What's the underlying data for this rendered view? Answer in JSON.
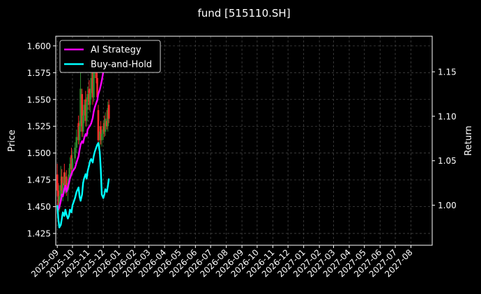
{
  "chart_data": {
    "type": "line",
    "title": "fund [515110.SH]",
    "ylabel_left": "Price",
    "ylabel_right": "Return",
    "x_ticks": [
      "2025-09",
      "2025-10",
      "2025-11",
      "2025-12",
      "2026-01",
      "2026-02",
      "2026-03",
      "2026-04",
      "2026-05",
      "2026-06",
      "2026-07",
      "2026-08",
      "2026-09",
      "2026-10",
      "2026-11",
      "2026-12",
      "2027-01",
      "2027-02",
      "2027-03",
      "2027-04",
      "2027-05",
      "2027-06",
      "2027-07",
      "2027-08"
    ],
    "x_range": [
      "2025-08-29",
      "2027-09-12"
    ],
    "y_left_ticks": [
      1.425,
      1.45,
      1.475,
      1.5,
      1.525,
      1.55,
      1.575,
      1.6
    ],
    "y_left_range": [
      1.414,
      1.609
    ],
    "y_right_ticks": [
      1.0,
      1.05,
      1.1,
      1.15
    ],
    "y_right_range": [
      0.955,
      1.19
    ],
    "grid": true,
    "legend_position": "top-left",
    "colors": {
      "ai_strategy": "#ff00ff",
      "buy_hold": "#00ffff",
      "up": "#2e8b2e",
      "down": "#ff2a2a",
      "grid": "#444444"
    },
    "series": [
      {
        "name": "AI Strategy",
        "axis": "right",
        "x": [
          "2025-09-01",
          "2025-09-03",
          "2025-09-05",
          "2025-09-08",
          "2025-09-10",
          "2025-09-12",
          "2025-09-15",
          "2025-09-17",
          "2025-09-19",
          "2025-09-22",
          "2025-09-24",
          "2025-09-26",
          "2025-09-29",
          "2025-10-01",
          "2025-10-06",
          "2025-10-09",
          "2025-10-13",
          "2025-10-15",
          "2025-10-17",
          "2025-10-20",
          "2025-10-22",
          "2025-10-24",
          "2025-10-27",
          "2025-10-29",
          "2025-10-31",
          "2025-11-03",
          "2025-11-05",
          "2025-11-07",
          "2025-11-10",
          "2025-11-12",
          "2025-11-14",
          "2025-11-17",
          "2025-11-19",
          "2025-11-21",
          "2025-11-24",
          "2025-11-26",
          "2025-11-28",
          "2025-12-01",
          "2025-12-03",
          "2025-12-05",
          "2025-12-08",
          "2025-12-10",
          "2025-12-12"
        ],
        "values": [
          1.0,
          0.995,
          0.998,
          1.005,
          1.012,
          1.01,
          1.018,
          1.022,
          1.015,
          1.02,
          1.025,
          1.03,
          1.035,
          1.038,
          1.042,
          1.048,
          1.055,
          1.062,
          1.068,
          1.072,
          1.07,
          1.075,
          1.08,
          1.078,
          1.085,
          1.088,
          1.09,
          1.092,
          1.098,
          1.105,
          1.11,
          1.115,
          1.118,
          1.125,
          1.13,
          1.135,
          1.14,
          1.15,
          1.16,
          1.162,
          1.158,
          1.165,
          1.168
        ]
      },
      {
        "name": "Buy-and-Hold",
        "axis": "right",
        "x": [
          "2025-09-01",
          "2025-09-03",
          "2025-09-05",
          "2025-09-08",
          "2025-09-10",
          "2025-09-12",
          "2025-09-15",
          "2025-09-17",
          "2025-09-19",
          "2025-09-22",
          "2025-09-24",
          "2025-09-26",
          "2025-09-29",
          "2025-10-01",
          "2025-10-06",
          "2025-10-09",
          "2025-10-13",
          "2025-10-15",
          "2025-10-17",
          "2025-10-20",
          "2025-10-22",
          "2025-10-24",
          "2025-10-27",
          "2025-10-29",
          "2025-10-31",
          "2025-11-03",
          "2025-11-05",
          "2025-11-07",
          "2025-11-10",
          "2025-11-12",
          "2025-11-14",
          "2025-11-17",
          "2025-11-19",
          "2025-11-21",
          "2025-11-24",
          "2025-11-26",
          "2025-11-28",
          "2025-12-01",
          "2025-12-03",
          "2025-12-05",
          "2025-12-08",
          "2025-12-10",
          "2025-12-12"
        ],
        "values": [
          1.0,
          0.985,
          0.975,
          0.978,
          0.985,
          0.992,
          0.988,
          0.995,
          0.99,
          0.985,
          0.988,
          0.995,
          0.992,
          1.0,
          1.008,
          1.015,
          1.02,
          1.01,
          1.005,
          1.012,
          1.025,
          1.03,
          1.035,
          1.03,
          1.038,
          1.045,
          1.05,
          1.052,
          1.048,
          1.055,
          1.06,
          1.065,
          1.068,
          1.07,
          1.06,
          1.04,
          1.012,
          1.008,
          1.012,
          1.018,
          1.015,
          1.022,
          1.03
        ]
      }
    ],
    "candles": [
      {
        "x": "2025-09-01",
        "open": 1.48,
        "high": 1.49,
        "low": 1.46,
        "close": 1.465
      },
      {
        "x": "2025-09-03",
        "open": 1.465,
        "high": 1.472,
        "low": 1.44,
        "close": 1.448
      },
      {
        "x": "2025-09-05",
        "open": 1.448,
        "high": 1.47,
        "low": 1.445,
        "close": 1.46
      },
      {
        "x": "2025-09-08",
        "open": 1.46,
        "high": 1.488,
        "low": 1.455,
        "close": 1.47
      },
      {
        "x": "2025-09-10",
        "open": 1.478,
        "high": 1.485,
        "low": 1.462,
        "close": 1.465
      },
      {
        "x": "2025-09-12",
        "open": 1.462,
        "high": 1.478,
        "low": 1.455,
        "close": 1.472
      },
      {
        "x": "2025-09-15",
        "open": 1.482,
        "high": 1.49,
        "low": 1.468,
        "close": 1.47
      },
      {
        "x": "2025-09-17",
        "open": 1.47,
        "high": 1.482,
        "low": 1.462,
        "close": 1.478
      },
      {
        "x": "2025-09-19",
        "open": 1.478,
        "high": 1.484,
        "low": 1.46,
        "close": 1.465
      },
      {
        "x": "2025-09-22",
        "open": 1.465,
        "high": 1.476,
        "low": 1.455,
        "close": 1.472
      },
      {
        "x": "2025-09-24",
        "open": 1.472,
        "high": 1.486,
        "low": 1.466,
        "close": 1.48
      },
      {
        "x": "2025-09-26",
        "open": 1.48,
        "high": 1.496,
        "low": 1.474,
        "close": 1.49
      },
      {
        "x": "2025-09-29",
        "open": 1.498,
        "high": 1.505,
        "low": 1.48,
        "close": 1.485
      },
      {
        "x": "2025-10-01",
        "open": 1.485,
        "high": 1.502,
        "low": 1.48,
        "close": 1.495
      },
      {
        "x": "2025-10-06",
        "open": 1.495,
        "high": 1.51,
        "low": 1.49,
        "close": 1.505
      },
      {
        "x": "2025-10-09",
        "open": 1.505,
        "high": 1.522,
        "low": 1.5,
        "close": 1.515
      },
      {
        "x": "2025-10-13",
        "open": 1.528,
        "high": 1.535,
        "low": 1.508,
        "close": 1.512
      },
      {
        "x": "2025-10-15",
        "open": 1.512,
        "high": 1.53,
        "low": 1.508,
        "close": 1.525
      },
      {
        "x": "2025-10-17",
        "open": 1.525,
        "high": 1.578,
        "low": 1.52,
        "close": 1.56
      },
      {
        "x": "2025-10-20",
        "open": 1.555,
        "high": 1.56,
        "low": 1.515,
        "close": 1.52
      },
      {
        "x": "2025-10-22",
        "open": 1.52,
        "high": 1.54,
        "low": 1.515,
        "close": 1.535
      },
      {
        "x": "2025-10-24",
        "open": 1.535,
        "high": 1.55,
        "low": 1.528,
        "close": 1.545
      },
      {
        "x": "2025-10-27",
        "open": 1.55,
        "high": 1.558,
        "low": 1.525,
        "close": 1.53
      },
      {
        "x": "2025-10-29",
        "open": 1.53,
        "high": 1.552,
        "low": 1.525,
        "close": 1.548
      },
      {
        "x": "2025-10-31",
        "open": 1.548,
        "high": 1.562,
        "low": 1.54,
        "close": 1.555
      },
      {
        "x": "2025-11-03",
        "open": 1.56,
        "high": 1.568,
        "low": 1.54,
        "close": 1.545
      },
      {
        "x": "2025-11-05",
        "open": 1.545,
        "high": 1.56,
        "low": 1.538,
        "close": 1.556
      },
      {
        "x": "2025-11-07",
        "open": 1.556,
        "high": 1.575,
        "low": 1.55,
        "close": 1.57
      },
      {
        "x": "2025-11-10",
        "open": 1.575,
        "high": 1.582,
        "low": 1.545,
        "close": 1.552
      },
      {
        "x": "2025-11-12",
        "open": 1.552,
        "high": 1.58,
        "low": 1.548,
        "close": 1.575
      },
      {
        "x": "2025-11-14",
        "open": 1.575,
        "high": 1.592,
        "low": 1.57,
        "close": 1.585
      },
      {
        "x": "2025-11-17",
        "open": 1.59,
        "high": 1.598,
        "low": 1.565,
        "close": 1.57
      },
      {
        "x": "2025-11-19",
        "open": 1.57,
        "high": 1.585,
        "low": 1.548,
        "close": 1.552
      },
      {
        "x": "2025-11-21",
        "open": 1.54,
        "high": 1.545,
        "low": 1.51,
        "close": 1.512
      },
      {
        "x": "2025-11-24",
        "open": 1.512,
        "high": 1.525,
        "low": 1.505,
        "close": 1.52
      },
      {
        "x": "2025-11-26",
        "open": 1.525,
        "high": 1.53,
        "low": 1.508,
        "close": 1.512
      },
      {
        "x": "2025-11-28",
        "open": 1.512,
        "high": 1.522,
        "low": 1.506,
        "close": 1.518
      },
      {
        "x": "2025-12-01",
        "open": 1.518,
        "high": 1.53,
        "low": 1.512,
        "close": 1.525
      },
      {
        "x": "2025-12-03",
        "open": 1.528,
        "high": 1.535,
        "low": 1.515,
        "close": 1.52
      },
      {
        "x": "2025-12-05",
        "open": 1.52,
        "high": 1.538,
        "low": 1.516,
        "close": 1.532
      },
      {
        "x": "2025-12-08",
        "open": 1.53,
        "high": 1.54,
        "low": 1.522,
        "close": 1.525
      },
      {
        "x": "2025-12-10",
        "open": 1.525,
        "high": 1.548,
        "low": 1.52,
        "close": 1.542
      },
      {
        "x": "2025-12-12",
        "open": 1.545,
        "high": 1.55,
        "low": 1.528,
        "close": 1.532
      }
    ]
  }
}
